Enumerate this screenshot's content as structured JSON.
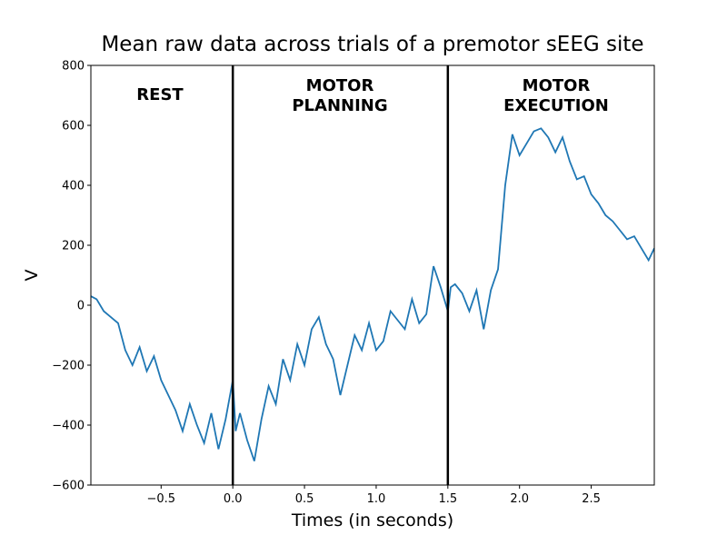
{
  "chart_data": {
    "type": "line",
    "title": "Mean raw data across trials of a premotor sEEG site",
    "xlabel": "Times (in seconds)",
    "ylabel": "V",
    "annotations": [
      [
        "REST"
      ],
      [
        "MOTOR",
        "PLANNING"
      ],
      [
        "MOTOR",
        "EXECUTION"
      ]
    ],
    "vlines": [
      0,
      1.5
    ],
    "x": [
      -0.99,
      -0.95,
      -0.9,
      -0.85,
      -0.8,
      -0.75,
      -0.7,
      -0.65,
      -0.6,
      -0.55,
      -0.5,
      -0.45,
      -0.4,
      -0.35,
      -0.3,
      -0.25,
      -0.2,
      -0.15,
      -0.1,
      -0.05,
      0.0,
      0.02,
      0.05,
      0.1,
      0.15,
      0.2,
      0.25,
      0.3,
      0.35,
      0.4,
      0.45,
      0.5,
      0.55,
      0.6,
      0.65,
      0.7,
      0.75,
      0.8,
      0.85,
      0.9,
      0.95,
      1.0,
      1.05,
      1.1,
      1.15,
      1.2,
      1.25,
      1.3,
      1.35,
      1.4,
      1.45,
      1.5,
      1.52,
      1.55,
      1.6,
      1.65,
      1.7,
      1.75,
      1.8,
      1.85,
      1.9,
      1.95,
      2.0,
      2.05,
      2.1,
      2.15,
      2.2,
      2.25,
      2.3,
      2.35,
      2.4,
      2.45,
      2.5,
      2.55,
      2.6,
      2.65,
      2.7,
      2.75,
      2.8,
      2.85,
      2.9,
      2.94
    ],
    "series": [
      {
        "name": "mean",
        "color": "#1f77b4",
        "values": [
          30,
          20,
          -20,
          -40,
          -60,
          -150,
          -200,
          -140,
          -220,
          -170,
          -250,
          -300,
          -350,
          -420,
          -330,
          -400,
          -460,
          -360,
          -480,
          -380,
          -250,
          -420,
          -360,
          -450,
          -520,
          -380,
          -270,
          -330,
          -180,
          -250,
          -130,
          -200,
          -80,
          -40,
          -130,
          -180,
          -300,
          -200,
          -100,
          -150,
          -60,
          -150,
          -120,
          -20,
          -50,
          -80,
          20,
          -60,
          -30,
          130,
          60,
          -20,
          60,
          70,
          40,
          -20,
          50,
          -80,
          50,
          120,
          400,
          570,
          500,
          540,
          580,
          590,
          560,
          510,
          560,
          480,
          420,
          430,
          370,
          340,
          300,
          280,
          250,
          220,
          230,
          190,
          150,
          190
        ]
      }
    ],
    "xlim": [
      -0.99,
      2.94
    ],
    "ylim": [
      -600,
      800
    ],
    "xticks": [
      {
        "value": -0.5,
        "label": "−0.5"
      },
      {
        "value": 0,
        "label": "0.0"
      },
      0.5,
      {
        "value": 1,
        "label": "1.0"
      },
      1.5,
      {
        "value": 2,
        "label": "2.0"
      },
      2.5
    ],
    "yticks": [
      {
        "value": -600,
        "label": "−600"
      },
      {
        "value": -400,
        "label": "−400"
      },
      {
        "value": -200,
        "label": "−200"
      },
      0,
      200,
      400,
      600,
      800
    ]
  }
}
